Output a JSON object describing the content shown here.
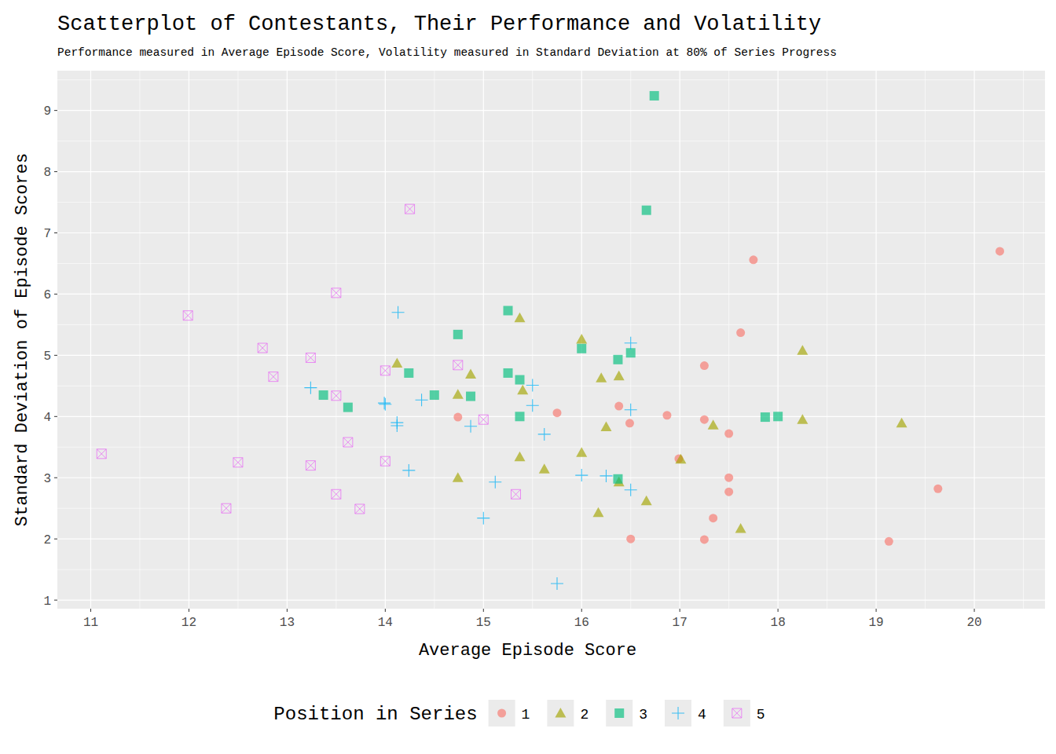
{
  "chart_data": {
    "type": "scatter",
    "title": "Scatterplot of Contestants, Their Performance and Volatility",
    "subtitle": "Performance measured in Average Episode Score, Volatility measured in Standard Deviation at 80% of Series Progress",
    "x_label": "Average Episode Score",
    "y_label": "Standard Deviation of Episode Scores",
    "legend_title": "Position in Series",
    "legend": "bottom",
    "grid": true,
    "xlim": [
      10.66,
      20.72
    ],
    "ylim": [
      0.86,
      9.65
    ],
    "xticks": [
      11,
      12,
      13,
      14,
      15,
      16,
      17,
      18,
      19,
      20
    ],
    "yticks": [
      1,
      2,
      3,
      4,
      5,
      6,
      7,
      8,
      9
    ],
    "series": [
      {
        "name": "1",
        "color": "#F8766D",
        "marker": "circle",
        "x": [
          20.26,
          17.75,
          17.62,
          17.25,
          15.75,
          14.74,
          16.87,
          17.25,
          17.5,
          16.49,
          16.38,
          16.99,
          17.5,
          17.5,
          19.63,
          17.34,
          16.5,
          17.25,
          19.13
        ],
        "values": [
          6.7,
          6.56,
          5.37,
          4.83,
          4.06,
          3.99,
          4.02,
          3.95,
          3.72,
          3.89,
          4.17,
          3.31,
          3.0,
          2.77,
          2.82,
          2.34,
          2.0,
          1.99,
          1.96
        ]
      },
      {
        "name": "2",
        "color": "#A3A500",
        "marker": "triangle",
        "x": [
          15.37,
          16.0,
          18.25,
          14.12,
          14.87,
          16.2,
          16.38,
          14.74,
          15.4,
          17.34,
          18.25,
          19.26,
          16.25,
          16.0,
          15.37,
          17.01,
          15.62,
          14.74,
          16.38,
          16.66,
          16.17,
          17.62
        ],
        "values": [
          5.61,
          5.26,
          5.08,
          4.87,
          4.69,
          4.63,
          4.66,
          4.36,
          4.43,
          3.86,
          3.95,
          3.89,
          3.83,
          3.41,
          3.34,
          3.3,
          3.14,
          3.0,
          2.93,
          2.62,
          2.43,
          2.17
        ]
      },
      {
        "name": "3",
        "color": "#00BF7D",
        "marker": "square",
        "x": [
          16.74,
          16.66,
          15.25,
          14.74,
          16.0,
          16.37,
          16.5,
          15.25,
          15.37,
          14.24,
          14.87,
          14.5,
          13.37,
          13.62,
          15.37,
          17.87,
          18.0,
          16.37
        ],
        "values": [
          9.24,
          7.37,
          5.73,
          5.34,
          5.11,
          4.93,
          5.04,
          4.71,
          4.6,
          4.71,
          4.33,
          4.35,
          4.35,
          4.15,
          4.0,
          3.99,
          4.0,
          2.98
        ]
      },
      {
        "name": "4",
        "color": "#00B0F6",
        "marker": "plus",
        "x": [
          14.13,
          16.5,
          13.24,
          15.5,
          13.99,
          14.0,
          14.37,
          15.5,
          16.5,
          14.12,
          14.12,
          14.87,
          15.62,
          14.24,
          16.0,
          16.25,
          15.12,
          16.5,
          15.0,
          15.75
        ],
        "values": [
          5.7,
          5.2,
          4.47,
          4.51,
          4.22,
          4.2,
          4.27,
          4.18,
          4.11,
          3.9,
          3.85,
          3.84,
          3.71,
          3.12,
          3.04,
          3.03,
          2.93,
          2.8,
          2.34,
          1.27
        ]
      },
      {
        "name": "5",
        "color": "#E76BF3",
        "marker": "square-cross",
        "x": [
          14.25,
          13.5,
          11.99,
          12.75,
          13.24,
          12.86,
          14.0,
          14.74,
          13.5,
          15.0,
          13.62,
          11.11,
          14.0,
          12.5,
          13.24,
          13.5,
          15.33,
          12.38,
          13.74
        ],
        "values": [
          7.39,
          6.02,
          5.65,
          5.12,
          4.96,
          4.65,
          4.75,
          4.84,
          4.34,
          3.95,
          3.58,
          3.39,
          3.27,
          3.25,
          3.2,
          2.73,
          2.73,
          2.5,
          2.49
        ]
      }
    ]
  }
}
